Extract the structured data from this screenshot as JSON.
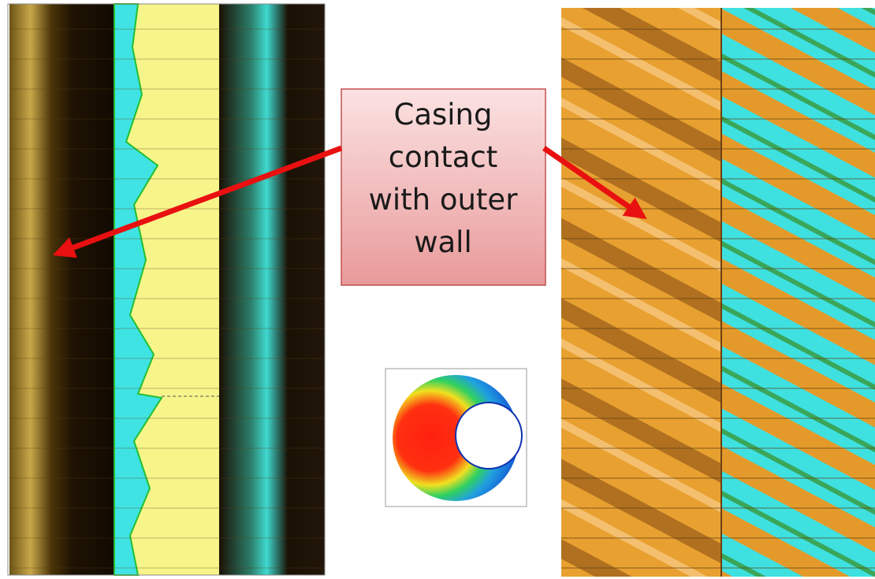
{
  "callout": {
    "lines": [
      "Casing",
      "contact",
      "with outer",
      "wall"
    ]
  }
}
